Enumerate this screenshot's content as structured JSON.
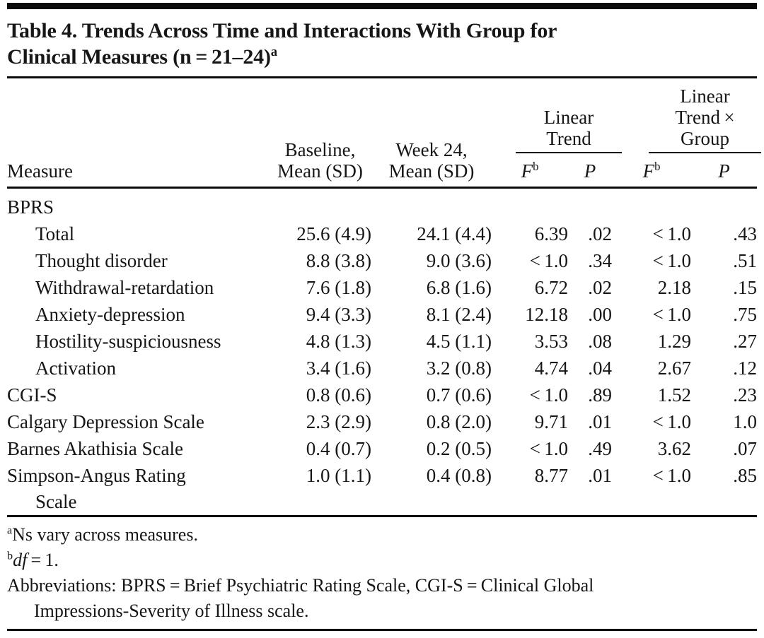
{
  "title": {
    "line1": "Table 4. Trends Across Time and Interactions With Group for",
    "line2": "Clinical Measures (n = 21–24)",
    "superscript": "a"
  },
  "header": {
    "measure": "Measure",
    "baseline_line1": "Baseline,",
    "baseline_line2": "Mean (SD)",
    "week24_line1": "Week 24,",
    "week24_line2": "Mean (SD)",
    "spanner1_line1": "Linear",
    "spanner1_line2": "Trend",
    "spanner2_line1": "Linear",
    "spanner2_line2": "Trend ×",
    "spanner2_line3": "Group",
    "f_label": "F",
    "f_sup": "b",
    "p_label": "P"
  },
  "rows": [
    {
      "measure": "BPRS",
      "indent": false,
      "baseline": "",
      "week24": "",
      "f1": "",
      "p1": "",
      "f2": "",
      "p2": ""
    },
    {
      "measure": "Total",
      "indent": true,
      "baseline": "25.6 (4.9)",
      "week24": "24.1 (4.4)",
      "f1": "6.39",
      "p1": ".02",
      "f2": "< 1.0",
      "p2": ".43"
    },
    {
      "measure": "Thought disorder",
      "indent": true,
      "baseline": "8.8 (3.8)",
      "week24": "9.0 (3.6)",
      "f1": "< 1.0",
      "p1": ".34",
      "f2": "< 1.0",
      "p2": ".51"
    },
    {
      "measure": "Withdrawal-retardation",
      "indent": true,
      "baseline": "7.6 (1.8)",
      "week24": "6.8 (1.6)",
      "f1": "6.72",
      "p1": ".02",
      "f2": "2.18",
      "p2": ".15"
    },
    {
      "measure": "Anxiety-depression",
      "indent": true,
      "baseline": "9.4 (3.3)",
      "week24": "8.1 (2.4)",
      "f1": "12.18",
      "p1": ".00",
      "f2": "< 1.0",
      "p2": ".75"
    },
    {
      "measure": "Hostility-suspiciousness",
      "indent": true,
      "baseline": "4.8 (1.3)",
      "week24": "4.5 (1.1)",
      "f1": "3.53",
      "p1": ".08",
      "f2": "1.29",
      "p2": ".27"
    },
    {
      "measure": "Activation",
      "indent": true,
      "baseline": "3.4 (1.6)",
      "week24": "3.2 (0.8)",
      "f1": "4.74",
      "p1": ".04",
      "f2": "2.67",
      "p2": ".12"
    },
    {
      "measure": "CGI-S",
      "indent": false,
      "baseline": "0.8 (0.6)",
      "week24": "0.7 (0.6)",
      "f1": "< 1.0",
      "p1": ".89",
      "f2": "1.52",
      "p2": ".23"
    },
    {
      "measure": "Calgary Depression Scale",
      "indent": false,
      "baseline": "2.3 (2.9)",
      "week24": "0.8 (2.0)",
      "f1": "9.71",
      "p1": ".01",
      "f2": "< 1.0",
      "p2": "1.0"
    },
    {
      "measure": "Barnes Akathisia Scale",
      "indent": false,
      "baseline": "0.4 (0.7)",
      "week24": "0.2 (0.5)",
      "f1": "< 1.0",
      "p1": ".49",
      "f2": "3.62",
      "p2": ".07"
    },
    {
      "measure": "Simpson-Angus Rating",
      "measure_line2": "Scale",
      "indent": false,
      "baseline": "1.0 (1.1)",
      "week24": "0.4 (0.8)",
      "f1": "8.77",
      "p1": ".01",
      "f2": "< 1.0",
      "p2": ".85"
    }
  ],
  "footnotes": {
    "a": {
      "sup": "a",
      "text": "Ns vary across measures."
    },
    "b": {
      "sup": "b",
      "italic": "df",
      "rest": " = 1."
    },
    "abbrev_line1": "Abbreviations: BPRS = Brief Psychiatric Rating Scale, CGI-S = Clinical Global",
    "abbrev_line2": "Impressions-Severity of Illness scale."
  }
}
